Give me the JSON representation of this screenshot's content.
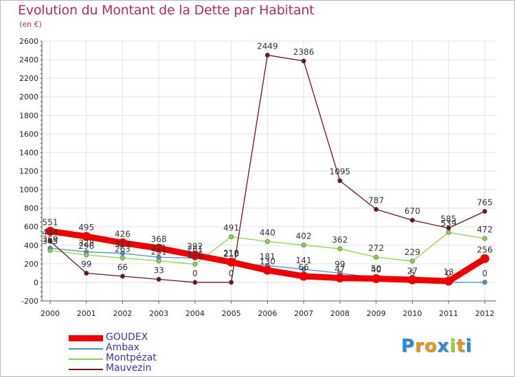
{
  "header": {
    "title": "Evolution du Montant de la Dette par Habitant",
    "subtitle": "(en €)"
  },
  "logo": {
    "letters": [
      "P",
      "r",
      "o",
      "x",
      "i",
      "t",
      "i"
    ],
    "colors": [
      "#2a8ad6",
      "#e8941a",
      "#e8941a",
      "#2a8ad6",
      "#9bcf3a",
      "#e8941a",
      "#2a8ad6"
    ]
  },
  "chart_data": {
    "type": "line",
    "title": "Evolution du Montant de la Dette par Habitant",
    "ylabel": "(en €)",
    "xlabel": "",
    "ylim": [
      -200,
      2600
    ],
    "yticks": [
      -200,
      0,
      200,
      400,
      600,
      800,
      1000,
      1200,
      1400,
      1600,
      1800,
      2000,
      2200,
      2400,
      2600
    ],
    "categories": [
      "2000",
      "2001",
      "2002",
      "2003",
      "2004",
      "2005",
      "2006",
      "2007",
      "2008",
      "2009",
      "2010",
      "2011",
      "2012"
    ],
    "grid": true,
    "legend_position": "bottom-left",
    "series": [
      {
        "name": "GOUDEX",
        "color": "#ee0000",
        "values": [
          551,
          495,
          426,
          368,
          292,
          218,
          130,
          66,
          47,
          40,
          27,
          13,
          256
        ]
      },
      {
        "name": "Ambax",
        "color": "#4a8fd0",
        "values": [
          369,
          328,
          313,
          271,
          261,
          210,
          181,
          141,
          99,
          50,
          5,
          0,
          0
        ]
      },
      {
        "name": "Montpézat",
        "color": "#8ed14a",
        "values": [
          345,
          296,
          263,
          231,
          196,
          491,
          440,
          402,
          362,
          272,
          229,
          539,
          472
        ]
      },
      {
        "name": "Mauvezin",
        "color": "#6b1420",
        "values": [
          444,
          99,
          66,
          33,
          0,
          0,
          2449,
          2386,
          1095,
          787,
          670,
          585,
          765
        ]
      }
    ],
    "point_labels": {
      "GOUDEX": [
        "551",
        "495",
        "426",
        "368",
        "292",
        "218",
        "130",
        "66",
        "47",
        "40",
        "27",
        "13",
        "256"
      ],
      "Ambax": [
        "369",
        "328",
        "313",
        "271",
        "261",
        "210",
        "181",
        "141",
        "99",
        "50",
        "5",
        "0",
        "0"
      ],
      "Montpézat": [
        "345",
        "296",
        "263",
        "231",
        "196",
        "491",
        "440",
        "402",
        "362",
        "272",
        "229",
        "539",
        "472"
      ],
      "Mauvezin": [
        "444",
        "99",
        "66",
        "33",
        "0",
        "0",
        "2449",
        "2386",
        "1095",
        "787",
        "670",
        "585",
        "765"
      ]
    }
  }
}
